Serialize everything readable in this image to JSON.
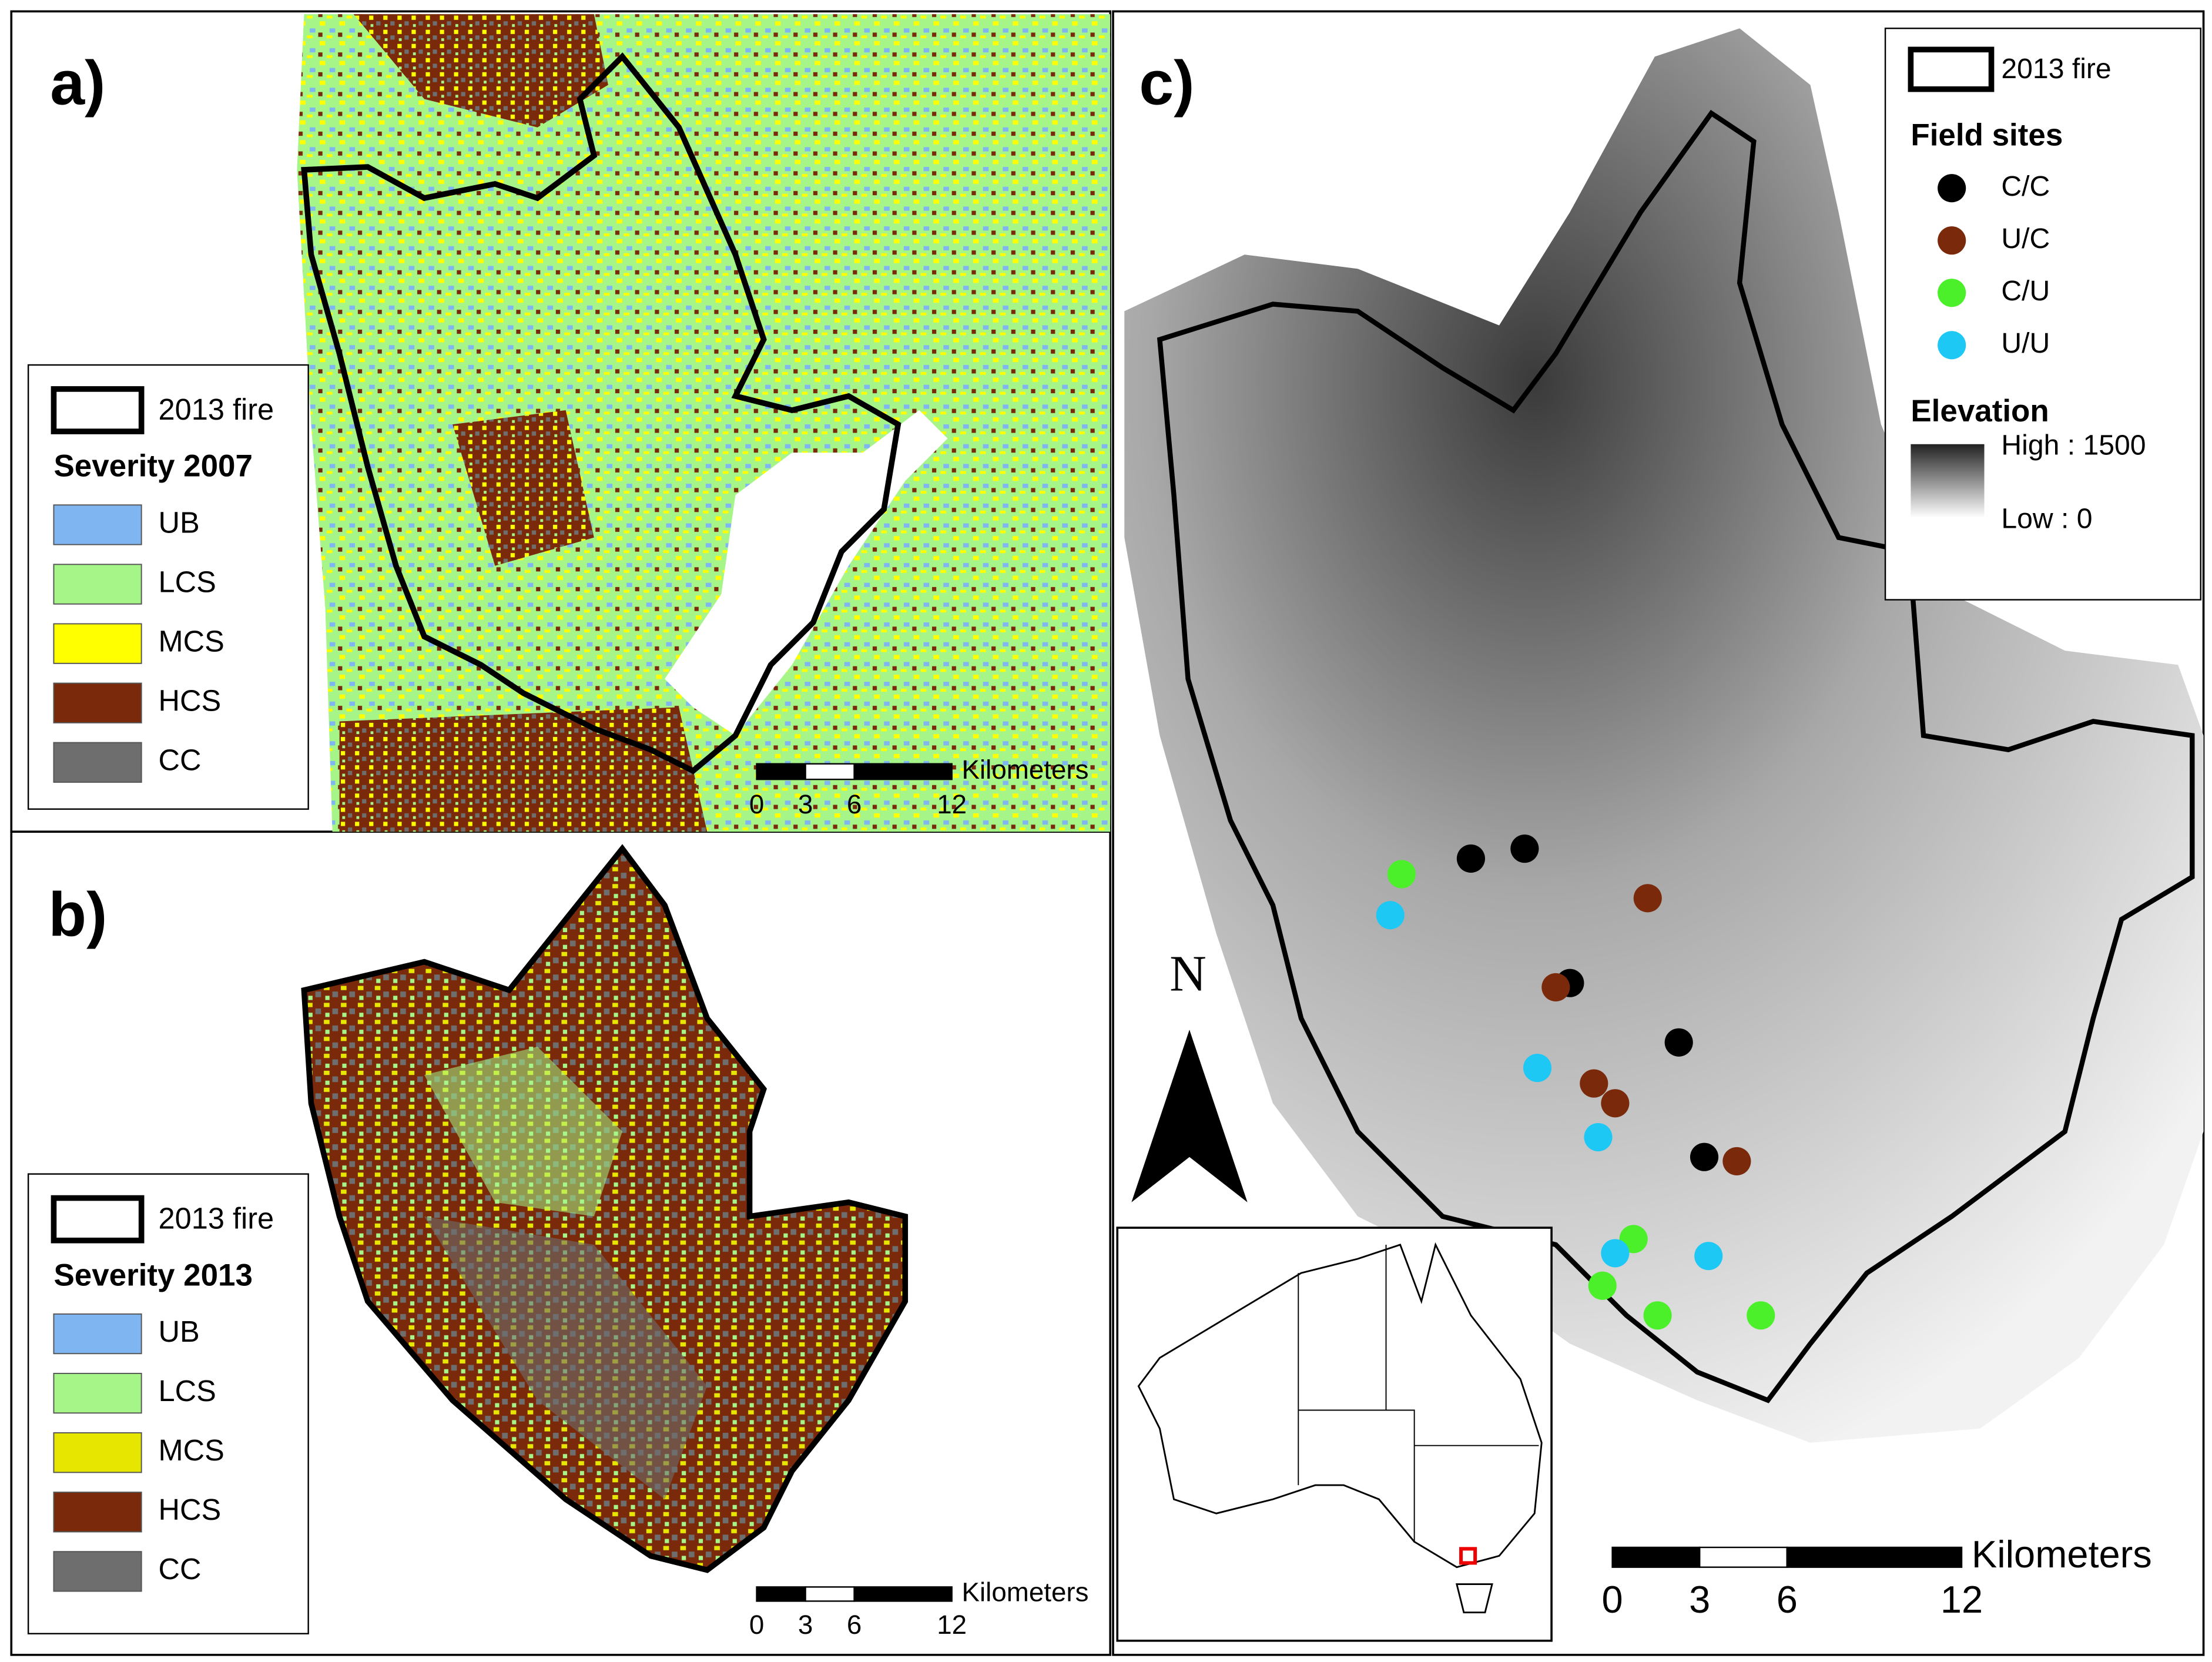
{
  "panels": {
    "a": {
      "label": "a)",
      "legend": {
        "fire": "2013 fire",
        "title": "Severity 2007",
        "classes": [
          {
            "label": "UB",
            "color": "#7fb6f2"
          },
          {
            "label": "LCS",
            "color": "#a6f589"
          },
          {
            "label": "MCS",
            "color": "#ffff00"
          },
          {
            "label": "HCS",
            "color": "#7a2a0a"
          },
          {
            "label": "CC",
            "color": "#6e6e6e"
          }
        ]
      },
      "scale": {
        "unit": "Kilometers",
        "ticks": [
          0,
          3,
          6,
          12
        ]
      }
    },
    "b": {
      "label": "b)",
      "legend": {
        "fire": "2013 fire",
        "title": "Severity 2013",
        "classes": [
          {
            "label": "UB",
            "color": "#7fb6f2"
          },
          {
            "label": "LCS",
            "color": "#a6f589"
          },
          {
            "label": "MCS",
            "color": "#e6e600"
          },
          {
            "label": "HCS",
            "color": "#7a2a0a"
          },
          {
            "label": "CC",
            "color": "#6e6e6e"
          }
        ]
      },
      "scale": {
        "unit": "Kilometers",
        "ticks": [
          0,
          3,
          6,
          12
        ]
      }
    },
    "c": {
      "label": "c)",
      "legend": {
        "fire": "2013 fire",
        "sites_title": "Field sites",
        "sites": [
          {
            "label": "C/C",
            "color": "#000000"
          },
          {
            "label": "U/C",
            "color": "#7a2a0a"
          },
          {
            "label": "C/U",
            "color": "#4cf02a"
          },
          {
            "label": "U/U",
            "color": "#1ec8f5"
          }
        ],
        "elevation_title": "Elevation",
        "high": "High : 1500",
        "low": "Low : 0"
      },
      "north": "N",
      "scale": {
        "unit": "Kilometers",
        "ticks": [
          0,
          3,
          6,
          12
        ]
      }
    }
  }
}
